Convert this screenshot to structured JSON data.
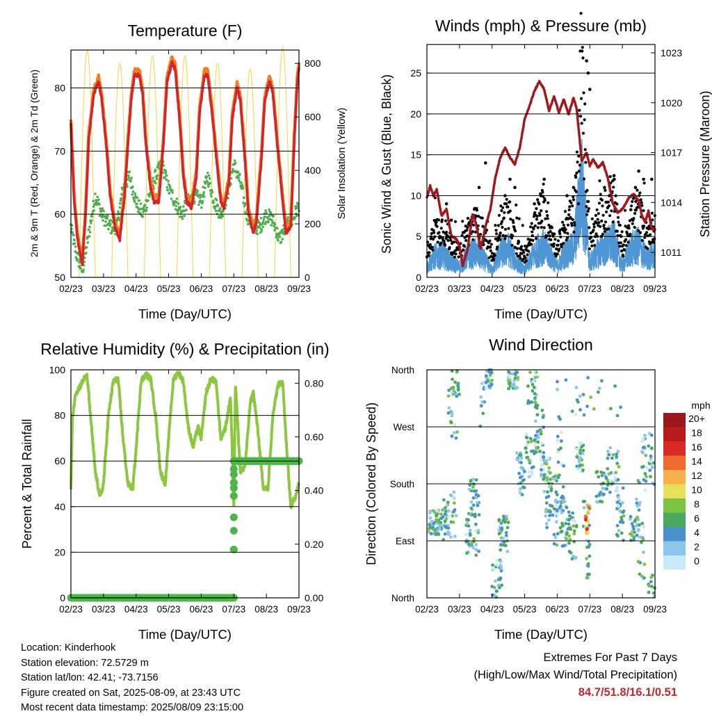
{
  "x_ticks": [
    "02/23",
    "03/23",
    "04/23",
    "05/23",
    "06/23",
    "07/23",
    "08/23",
    "09/23"
  ],
  "temperature_panel": {
    "title": "Temperature (F)",
    "xlabel": "Time (Day/UTC)",
    "ylabel_left": "2m & 9m T (Red, Orange) & 2m Td (Green)",
    "ylabel_right": "Solar Insolation (Yellow)"
  },
  "winds_panel": {
    "title": "Winds (mph) & Pressure (mb)",
    "xlabel": "Time (Day/UTC)",
    "ylabel_left": "Sonic Wind & Gust (Blue, Black)",
    "ylabel_right": "Station Pressure (Maroon)"
  },
  "rh_panel": {
    "title": "Relative Humidity (%) & Precipitation (in)",
    "xlabel": "Time (Day/UTC)",
    "ylabel_left": "Percent & Total Rainfall"
  },
  "wdir_panel": {
    "title": "Wind Direction",
    "xlabel": "Time (Day/UTC)",
    "ylabel_left": "Direction (Colored By Speed)",
    "legend_title": "mph"
  },
  "colors": {
    "temp2m": "#d4242a",
    "temp9m": "#f07d1f",
    "dewpoint": "#4cae4c",
    "solar": "#f5d442",
    "wind": "#4f97d4",
    "gust": "#000000",
    "pressure": "#9e1a1f",
    "rh": "#8dc641",
    "precip": "#4cb748",
    "extremes": "#c0282d"
  },
  "chart_data": [
    {
      "type": "line",
      "title": "Temperature (F)",
      "xlabel": "Time (Day/UTC)",
      "x_ticks": [
        "02/23",
        "03/23",
        "04/23",
        "05/23",
        "06/23",
        "07/23",
        "08/23",
        "09/23"
      ],
      "y_left_range": [
        50,
        86
      ],
      "y_left_ticks": [
        50,
        60,
        70,
        80
      ],
      "y_right_range": [
        0,
        850
      ],
      "y_right_ticks": [
        0,
        200,
        400,
        600,
        800
      ],
      "series": [
        {
          "name": "2m T",
          "axis": "left",
          "x": [
            0,
            0.1,
            0.2,
            0.35,
            0.45,
            0.55,
            0.7,
            0.85,
            0.95,
            1.1,
            1.2,
            1.35,
            1.5,
            1.65,
            1.75,
            1.85,
            1.95,
            2.1,
            2.2,
            2.3,
            2.45,
            2.55,
            2.7,
            2.85,
            2.95,
            3.1,
            3.2,
            3.35,
            3.45,
            3.55,
            3.7,
            3.85,
            3.95,
            4.1,
            4.2,
            4.35,
            4.5,
            4.6,
            4.7,
            4.85,
            4.95,
            5.1,
            5.2,
            5.35,
            5.45,
            5.6,
            5.7,
            5.85,
            5.95,
            6.1,
            6.2,
            6.35,
            6.5,
            6.6,
            6.75,
            6.85,
            6.95,
            7.0
          ],
          "y": [
            74,
            62,
            56,
            52,
            60,
            72,
            79,
            81,
            78,
            70,
            63,
            58,
            56,
            63,
            71,
            78,
            82,
            82,
            79,
            71,
            64,
            62,
            62,
            72,
            81,
            84,
            83,
            74,
            66,
            62,
            61,
            66,
            76,
            82,
            82,
            75,
            67,
            62,
            61,
            65,
            75,
            80,
            78,
            68,
            60,
            57,
            59,
            69,
            78,
            81,
            79,
            70,
            62,
            57,
            58,
            71,
            81,
            83
          ]
        },
        {
          "name": "9m T",
          "axis": "left",
          "x": [
            0,
            0.35,
            0.85,
            1.35,
            1.85,
            2.3,
            2.85,
            3.1,
            3.55,
            4.1,
            4.6,
            5.1,
            5.6,
            6.1,
            6.6,
            6.95
          ],
          "y": [
            74,
            53,
            80,
            57,
            78,
            71,
            80,
            83,
            63,
            81,
            62,
            79,
            58,
            80,
            58,
            82
          ]
        },
        {
          "name": "2m Td",
          "axis": "left",
          "x": [
            0,
            0.15,
            0.35,
            0.55,
            0.75,
            0.95,
            1.2,
            1.4,
            1.6,
            1.8,
            2.0,
            2.2,
            2.4,
            2.6,
            2.8,
            3.0,
            3.2,
            3.4,
            3.6,
            3.8,
            4.0,
            4.2,
            4.4,
            4.6,
            4.8,
            5.0,
            5.2,
            5.4,
            5.6,
            5.8,
            6.0,
            6.2,
            6.4,
            6.6,
            6.8,
            6.95
          ],
          "y": [
            58,
            54,
            51,
            57,
            63,
            60,
            58,
            58,
            64,
            66,
            62,
            60,
            63,
            66,
            68,
            64,
            62,
            60,
            62,
            63,
            62,
            66,
            62,
            60,
            63,
            68,
            65,
            60,
            58,
            58,
            60,
            59,
            56,
            58,
            59,
            61
          ]
        },
        {
          "name": "Solar Insolation",
          "axis": "right",
          "x": [
            0.25,
            0.5,
            0.75,
            1.25,
            1.5,
            1.75,
            2.25,
            2.5,
            2.75,
            3.25,
            3.5,
            3.75,
            4.25,
            4.5,
            4.75,
            5.25,
            5.5,
            5.75,
            6.25,
            6.5,
            6.75
          ],
          "y": [
            0,
            850,
            0,
            0,
            800,
            0,
            0,
            830,
            0,
            0,
            830,
            0,
            0,
            800,
            0,
            0,
            780,
            0,
            0,
            860,
            0
          ]
        }
      ]
    },
    {
      "type": "line",
      "title": "Winds (mph) & Pressure (mb)",
      "xlabel": "Time (Day/UTC)",
      "x_ticks": [
        "02/23",
        "03/23",
        "04/23",
        "05/23",
        "06/23",
        "07/23",
        "08/23",
        "09/23"
      ],
      "y_left_range": [
        0,
        28.5
      ],
      "y_left_ticks": [
        0,
        5,
        10,
        15,
        20,
        25
      ],
      "y_right_range": [
        1009.5,
        1023.5
      ],
      "y_right_ticks": [
        1011,
        1014,
        1017,
        1020,
        1023
      ],
      "series": [
        {
          "name": "Station Pressure",
          "axis": "right",
          "x": [
            0,
            0.1,
            0.2,
            0.3,
            0.45,
            0.6,
            0.75,
            0.9,
            1.0,
            1.1,
            1.25,
            1.4,
            1.5,
            1.65,
            1.8,
            1.95,
            2.1,
            2.25,
            2.4,
            2.55,
            2.7,
            2.85,
            3.0,
            3.15,
            3.3,
            3.45,
            3.6,
            3.75,
            3.9,
            4.05,
            4.2,
            4.35,
            4.5,
            4.6,
            4.75,
            4.9,
            5.0,
            5.1,
            5.25,
            5.4,
            5.55,
            5.7,
            5.85,
            6.0,
            6.2,
            6.35,
            6.5,
            6.6,
            6.7,
            6.8,
            6.9,
            7.0
          ],
          "y": [
            1014.3,
            1015.0,
            1014.4,
            1014.8,
            1013.2,
            1013.6,
            1012.0,
            1011.8,
            1011.4,
            1010.2,
            1011.2,
            1013.3,
            1012.8,
            1011.2,
            1012.6,
            1013.6,
            1015.5,
            1016.7,
            1017.3,
            1016.7,
            1016.3,
            1017.3,
            1019.0,
            1019.8,
            1020.7,
            1021.3,
            1020.8,
            1019.5,
            1020.4,
            1019.4,
            1020.2,
            1019.3,
            1020.3,
            1019.6,
            1016.5,
            1017.0,
            1016.2,
            1016.6,
            1016.1,
            1016.4,
            1015.5,
            1014.0,
            1013.4,
            1013.6,
            1014.3,
            1014.5,
            1014.1,
            1013.2,
            1012.8,
            1013.5,
            1012.4,
            1012.4
          ]
        },
        {
          "name": "Sonic Wind",
          "axis": "left",
          "x": [
            0,
            0.25,
            0.5,
            0.75,
            1.0,
            1.25,
            1.5,
            1.75,
            2.0,
            2.25,
            2.5,
            2.75,
            3.0,
            3.25,
            3.5,
            3.75,
            4.0,
            4.25,
            4.5,
            4.75,
            5.0,
            5.25,
            5.5,
            5.75,
            6.0,
            6.25,
            6.5,
            6.75,
            7.0
          ],
          "y": [
            1.5,
            3.0,
            3.2,
            2.0,
            1.5,
            3.0,
            3.5,
            2.5,
            1.0,
            3.5,
            4.0,
            2.0,
            1.0,
            3.0,
            4.5,
            3.5,
            1.5,
            3.5,
            4.0,
            13.0,
            2.0,
            3.5,
            4.5,
            5.0,
            1.5,
            4.0,
            4.5,
            2.5,
            3.5
          ]
        },
        {
          "name": "Gust",
          "axis": "left",
          "x": [
            0.1,
            0.4,
            0.6,
            0.75,
            1.35,
            1.6,
            1.8,
            2.4,
            2.55,
            2.7,
            3.3,
            3.5,
            3.6,
            4.3,
            4.5,
            4.65,
            4.9,
            4.95,
            5.0,
            5.45,
            5.6,
            5.75,
            6.4,
            6.5,
            6.65,
            6.9
          ],
          "y": [
            4,
            5,
            9,
            7,
            7,
            11,
            14,
            10,
            12,
            11,
            9,
            10,
            12,
            10,
            11,
            9,
            26.5,
            25,
            23,
            11,
            10,
            12,
            11,
            13,
            12,
            12
          ]
        }
      ]
    },
    {
      "type": "line",
      "title": "Relative Humidity (%) & Precipitation (in)",
      "xlabel": "Time (Day/UTC)",
      "x_ticks": [
        "02/23",
        "03/23",
        "04/23",
        "05/23",
        "06/23",
        "07/23",
        "08/23",
        "09/23"
      ],
      "y_left_range": [
        0,
        100
      ],
      "y_left_ticks": [
        0,
        20,
        40,
        60,
        80,
        100
      ],
      "y_right_range": [
        0,
        0.85
      ],
      "y_right_ticks": [
        "0.00",
        "0.20",
        "0.40",
        "0.60",
        "0.80"
      ],
      "series": [
        {
          "name": "Relative Humidity",
          "axis": "left",
          "x": [
            0,
            0.05,
            0.15,
            0.25,
            0.4,
            0.5,
            0.6,
            0.75,
            0.9,
            1.0,
            1.15,
            1.3,
            1.45,
            1.6,
            1.75,
            1.9,
            2.0,
            2.15,
            2.3,
            2.45,
            2.6,
            2.75,
            2.9,
            3.05,
            3.15,
            3.3,
            3.45,
            3.6,
            3.75,
            3.9,
            4.0,
            4.15,
            4.3,
            4.45,
            4.6,
            4.75,
            4.9,
            5.0,
            5.05,
            5.2,
            5.35,
            5.5,
            5.6,
            5.75,
            5.9,
            6.05,
            6.2,
            6.35,
            6.5,
            6.6,
            6.75,
            6.9,
            7.0
          ],
          "y": [
            48,
            80,
            90,
            92,
            96,
            97,
            80,
            55,
            44,
            50,
            80,
            95,
            96,
            70,
            50,
            48,
            65,
            95,
            98,
            96,
            80,
            55,
            50,
            80,
            96,
            99,
            95,
            75,
            66,
            75,
            70,
            90,
            96,
            95,
            70,
            75,
            88,
            40,
            95,
            55,
            58,
            85,
            90,
            72,
            48,
            48,
            80,
            93,
            95,
            70,
            40,
            45,
            50
          ]
        },
        {
          "name": "Total Rainfall",
          "axis": "right",
          "x": [
            0,
            1,
            2,
            3,
            4,
            5.0,
            5.0,
            5.0,
            5.0,
            5.0,
            5.0,
            5.0,
            5.0,
            5.0,
            6,
            7
          ],
          "y": [
            0,
            0,
            0,
            0,
            0,
            0.0,
            0.18,
            0.25,
            0.3,
            0.38,
            0.41,
            0.43,
            0.46,
            0.48,
            0.51,
            0.51
          ]
        }
      ]
    },
    {
      "type": "scatter",
      "title": "Wind Direction",
      "xlabel": "Time (Day/UTC)",
      "ylabel": "Direction (Colored By Speed)",
      "x_ticks": [
        "02/23",
        "03/23",
        "04/23",
        "05/23",
        "06/23",
        "07/23",
        "08/23",
        "09/23"
      ],
      "y_ticks": [
        "North",
        "East",
        "South",
        "West",
        "North"
      ],
      "legend": {
        "title": "mph",
        "labels": [
          "0",
          "2",
          "4",
          "6",
          "8",
          "10",
          "12",
          "14",
          "16",
          "18",
          "20+"
        ],
        "colors": [
          "#cbe8f8",
          "#8cc6ec",
          "#4a90c9",
          "#4aa860",
          "#7cc245",
          "#e8e05a",
          "#f6b04a",
          "#f06a30",
          "#d92a27",
          "#b71c1c",
          "#98181e"
        ]
      }
    }
  ],
  "footer": {
    "location": "Location: Kinderhook",
    "elevation": "Station elevation: 72.5729 m",
    "latlon": "Station lat/lon: 42.41; -73.7156",
    "created": "Figure created on Sat, 2025-08-09, at 23:43 UTC",
    "timestamp": "Most recent data timestamp: 2025/08/09 23:15:00"
  },
  "extremes": {
    "title": "Extremes For Past 7 Days",
    "subtitle": "(High/Low/Max Wind/Total Precipitation)",
    "values": "84.7/51.8/16.1/0.51"
  }
}
